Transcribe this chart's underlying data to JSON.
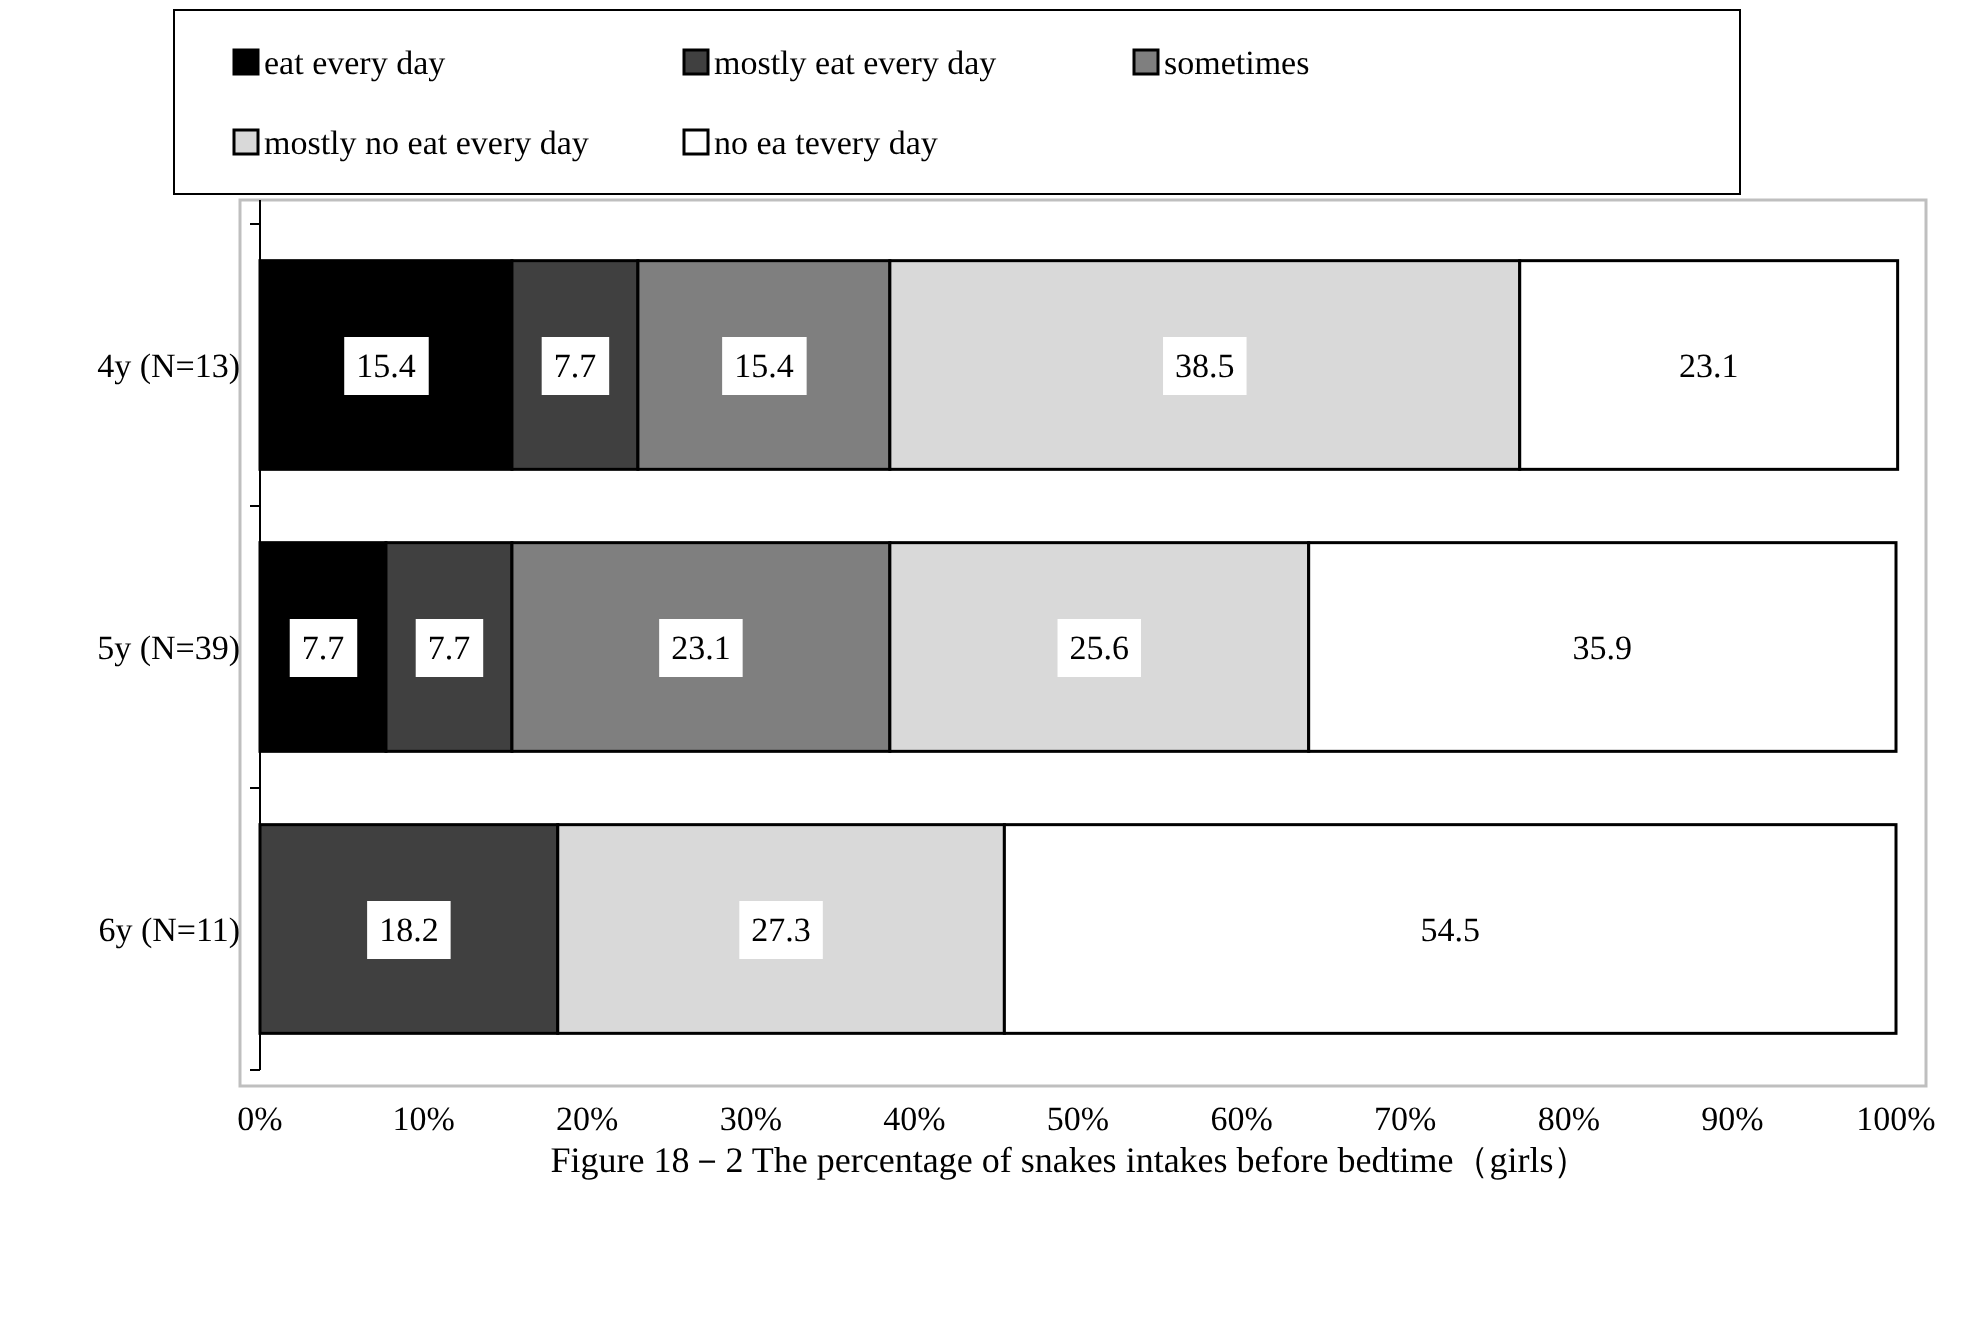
{
  "chart_data": {
    "type": "bar",
    "orientation": "horizontal",
    "stacked": true,
    "title": "Figure 18－2  The percentage of snakes intakes before bedtime（girls）",
    "categories": [
      "4y (N=13)",
      "5y (N=39)",
      "6y (N=11)"
    ],
    "series": [
      {
        "name": "eat every day",
        "color": "#000000",
        "values": [
          15.4,
          7.7,
          null
        ]
      },
      {
        "name": "mostly eat every day",
        "color": "#404040",
        "values": [
          7.7,
          7.7,
          18.2
        ]
      },
      {
        "name": "sometimes",
        "color": "#7f7f7f",
        "values": [
          15.4,
          23.1,
          null
        ]
      },
      {
        "name": "mostly no eat every day",
        "color": "#d9d9d9",
        "values": [
          38.5,
          25.6,
          27.3
        ]
      },
      {
        "name": "no ea tevery day",
        "color": "#ffffff",
        "values": [
          23.1,
          35.9,
          54.5
        ]
      }
    ],
    "xlim": [
      0,
      100
    ],
    "xticks": [
      {
        "value": 0,
        "label": "0%"
      },
      {
        "value": 10,
        "label": "10%"
      },
      {
        "value": 20,
        "label": "20%"
      },
      {
        "value": 30,
        "label": "30%"
      },
      {
        "value": 40,
        "label": "40%"
      },
      {
        "value": 50,
        "label": "50%"
      },
      {
        "value": 60,
        "label": "60%"
      },
      {
        "value": 70,
        "label": "70%"
      },
      {
        "value": 80,
        "label": "80%"
      },
      {
        "value": 90,
        "label": "90%"
      },
      {
        "value": 100,
        "label": "100%"
      }
    ],
    "data_labels": true,
    "legend": "top",
    "grid": false
  }
}
